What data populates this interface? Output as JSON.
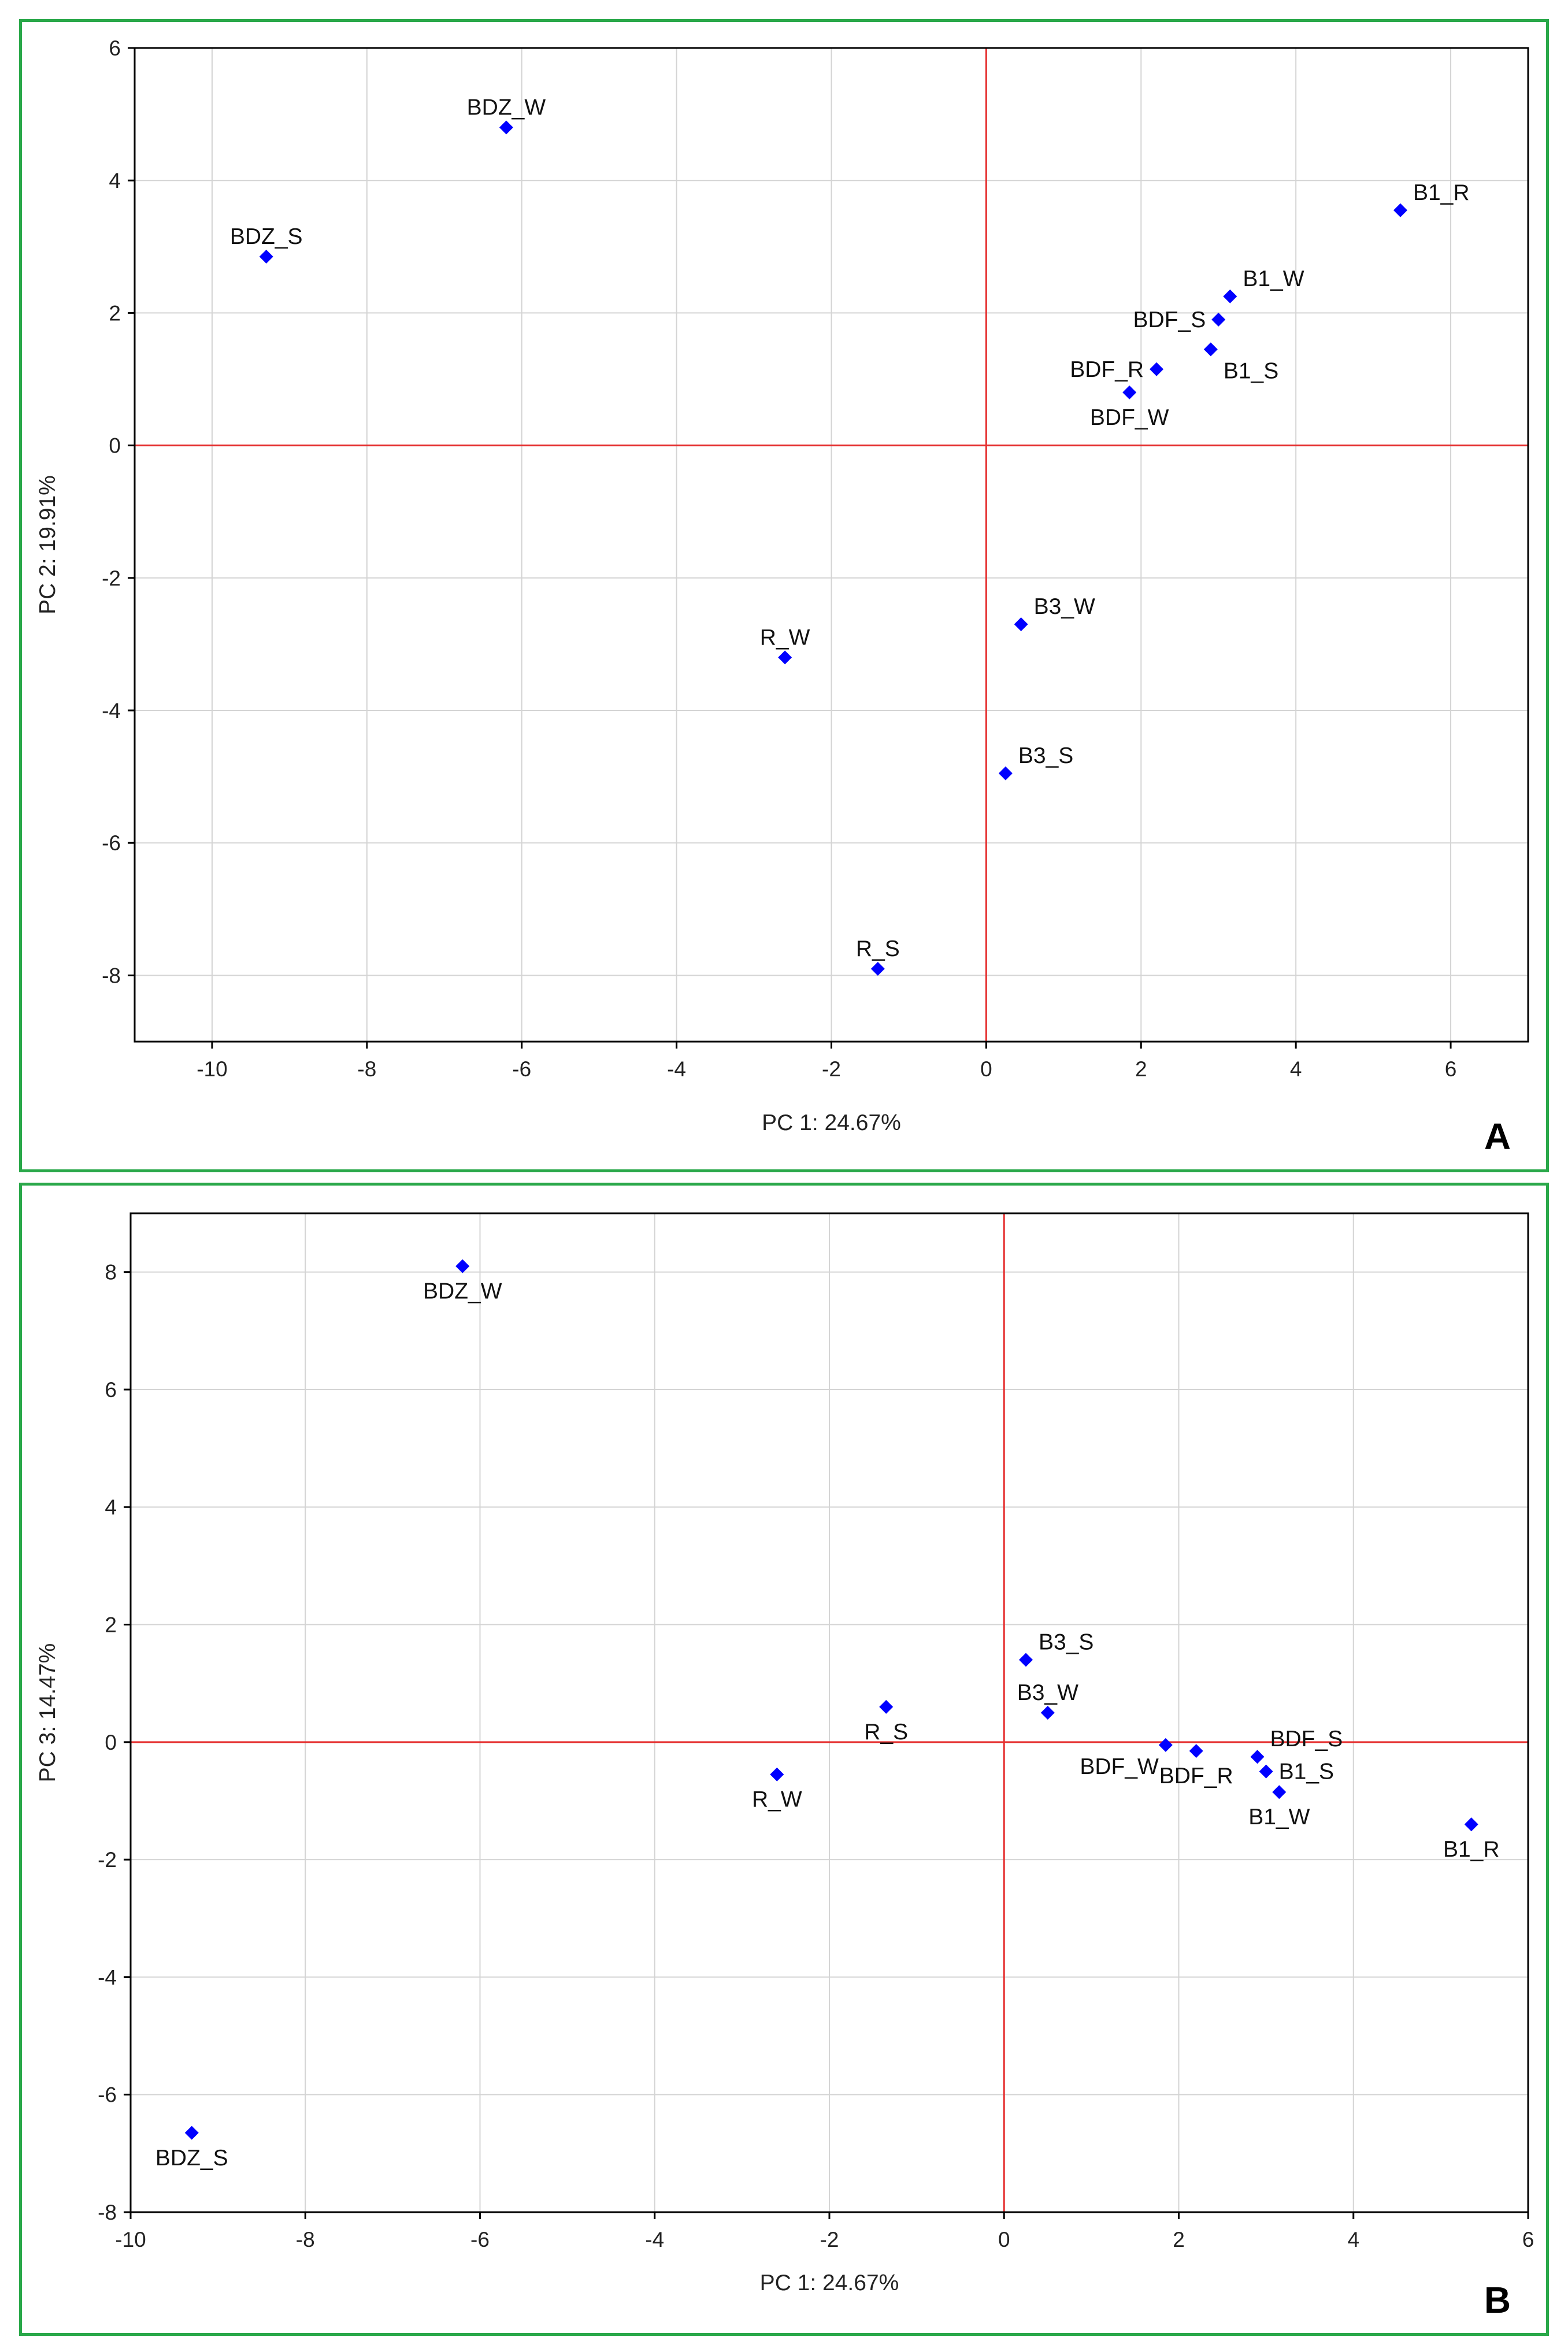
{
  "chart_data": [
    {
      "type": "scatter",
      "panel": "A",
      "title": "",
      "xlabel": "PC 1: 24.67%",
      "ylabel": "PC 2: 19.91%",
      "xlim": [
        -11,
        7
      ],
      "ylim": [
        -9,
        6
      ],
      "xticks": [
        -10,
        -8,
        -6,
        -4,
        -2,
        0,
        2,
        4,
        6
      ],
      "yticks": [
        -8,
        -6,
        -4,
        -2,
        0,
        2,
        4,
        6
      ],
      "grid": true,
      "colors": {
        "marker": "#0000ff",
        "refline": "#e53030",
        "grid": "#d4d4d4",
        "axis": "#000000"
      },
      "points": [
        {
          "label": "BDZ_W",
          "x": -6.2,
          "y": 4.8,
          "label_pos": "above"
        },
        {
          "label": "BDZ_S",
          "x": -9.3,
          "y": 2.85,
          "label_pos": "above"
        },
        {
          "label": "B1_R",
          "x": 5.35,
          "y": 3.55,
          "label_pos": "above-right"
        },
        {
          "label": "B1_W",
          "x": 3.15,
          "y": 2.25,
          "label_pos": "above-right"
        },
        {
          "label": "BDF_S",
          "x": 3.0,
          "y": 1.9,
          "label_pos": "left"
        },
        {
          "label": "B1_S",
          "x": 2.9,
          "y": 1.45,
          "label_pos": "below-right"
        },
        {
          "label": "BDF_R",
          "x": 2.2,
          "y": 1.15,
          "label_pos": "left"
        },
        {
          "label": "BDF_W",
          "x": 1.85,
          "y": 0.8,
          "label_pos": "below"
        },
        {
          "label": "B3_W",
          "x": 0.45,
          "y": -2.7,
          "label_pos": "above-right"
        },
        {
          "label": "R_W",
          "x": -2.6,
          "y": -3.2,
          "label_pos": "above"
        },
        {
          "label": "B3_S",
          "x": 0.25,
          "y": -4.95,
          "label_pos": "above-right"
        },
        {
          "label": "R_S",
          "x": -1.4,
          "y": -7.9,
          "label_pos": "above"
        }
      ],
      "panel_letter": "A"
    },
    {
      "type": "scatter",
      "panel": "B",
      "title": "",
      "xlabel": "PC 1: 24.67%",
      "ylabel": "PC 3: 14.47%",
      "xlim": [
        -10,
        6
      ],
      "ylim": [
        -8,
        9
      ],
      "xticks": [
        -10,
        -8,
        -6,
        -4,
        -2,
        0,
        2,
        4,
        6
      ],
      "yticks": [
        -8,
        -6,
        -4,
        -2,
        0,
        2,
        4,
        6,
        8
      ],
      "grid": true,
      "colors": {
        "marker": "#0000ff",
        "refline": "#e53030",
        "grid": "#d4d4d4",
        "axis": "#000000"
      },
      "points": [
        {
          "label": "BDZ_W",
          "x": -6.2,
          "y": 8.1,
          "label_pos": "below"
        },
        {
          "label": "BDZ_S",
          "x": -9.3,
          "y": -6.65,
          "label_pos": "below"
        },
        {
          "label": "B3_S",
          "x": 0.25,
          "y": 1.4,
          "label_pos": "above-right"
        },
        {
          "label": "B3_W",
          "x": 0.5,
          "y": 0.5,
          "label_pos": "above"
        },
        {
          "label": "R_S",
          "x": -1.35,
          "y": 0.6,
          "label_pos": "below"
        },
        {
          "label": "R_W",
          "x": -2.6,
          "y": -0.55,
          "label_pos": "below"
        },
        {
          "label": "BDF_W",
          "x": 1.85,
          "y": -0.05,
          "label_pos": "below-left"
        },
        {
          "label": "BDF_R",
          "x": 2.2,
          "y": -0.15,
          "label_pos": "below"
        },
        {
          "label": "BDF_S",
          "x": 2.9,
          "y": -0.25,
          "label_pos": "above-right"
        },
        {
          "label": "B1_S",
          "x": 3.0,
          "y": -0.5,
          "label_pos": "right"
        },
        {
          "label": "B1_W",
          "x": 3.15,
          "y": -0.85,
          "label_pos": "below"
        },
        {
          "label": "B1_R",
          "x": 5.35,
          "y": -1.4,
          "label_pos": "below"
        }
      ],
      "panel_letter": "B"
    }
  ]
}
